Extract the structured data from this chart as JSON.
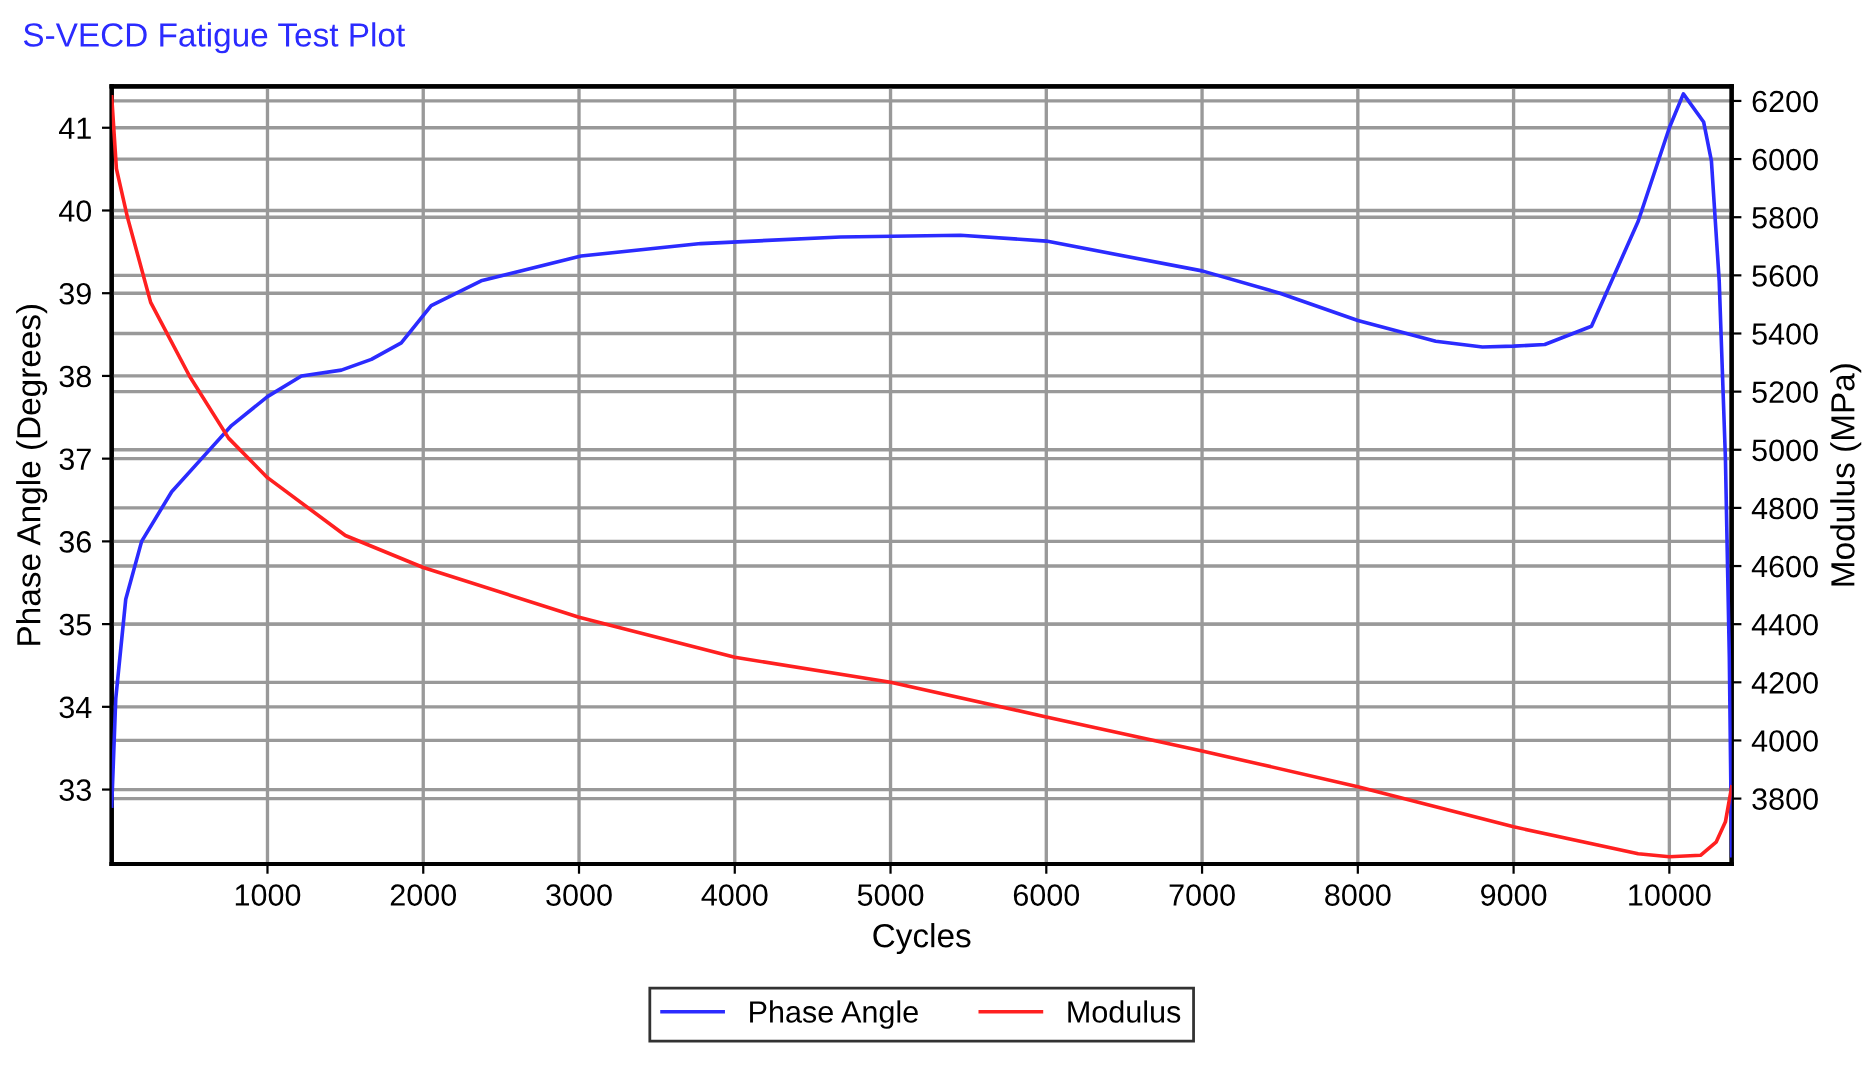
{
  "chart_data": {
    "type": "line",
    "title": "S-VECD Fatigue Test Plot",
    "xlabel": "Cycles",
    "ylabel": "Phase Angle (Degrees)",
    "y2label": "Modulus (MPa)",
    "xlim": [
      0,
      10400
    ],
    "xticks": [
      1000,
      2000,
      3000,
      4000,
      5000,
      6000,
      7000,
      8000,
      9000,
      10000
    ],
    "ylim": [
      32.1,
      41.5
    ],
    "yticks": [
      33,
      34,
      35,
      36,
      37,
      38,
      39,
      40,
      41
    ],
    "y2lim": [
      3575,
      6250
    ],
    "y2ticks": [
      3800,
      4000,
      4200,
      4400,
      4600,
      4800,
      5000,
      5200,
      5400,
      5600,
      5800,
      6000,
      6200
    ],
    "grid": true,
    "legend": "bottom",
    "marker": "none",
    "line_style": "solid",
    "series": [
      {
        "name": "Phase Angle",
        "color": "#2b2bff",
        "x": [
          0,
          26,
          90,
          192,
          385,
          577,
          769,
          1000,
          1218,
          1474,
          1667,
          1859,
          2051,
          2372,
          3013,
          3782,
          4679,
          5449,
          6000,
          7000,
          7500,
          8000,
          8500,
          8800,
          9000,
          9200,
          9500,
          9800,
          10000,
          10090,
          10220,
          10270,
          10320,
          10360,
          10385,
          10400
        ],
        "values": [
          32.8,
          34.1,
          35.3,
          36.0,
          36.6,
          37.0,
          37.4,
          37.75,
          38.0,
          38.07,
          38.2,
          38.4,
          38.85,
          39.15,
          39.45,
          39.6,
          39.68,
          39.7,
          39.63,
          39.27,
          39.0,
          38.67,
          38.42,
          38.35,
          38.36,
          38.38,
          38.6,
          39.87,
          41.0,
          41.41,
          41.07,
          40.6,
          39.15,
          37.0,
          34.6,
          32.2
        ]
      },
      {
        "name": "Modulus",
        "color": "#ff2020",
        "axis": "y2",
        "x": [
          0,
          30,
          100,
          250,
          500,
          750,
          1000,
          1500,
          2000,
          3000,
          4000,
          5000,
          6000,
          7000,
          8000,
          9000,
          9800,
          10000,
          10200,
          10300,
          10360,
          10400
        ],
        "values": [
          6214,
          5967,
          5802,
          5507,
          5253,
          5040,
          4904,
          4705,
          4595,
          4424,
          4286,
          4200,
          4081,
          3964,
          3841,
          3703,
          3610,
          3600,
          3605,
          3650,
          3720,
          3840
        ]
      }
    ]
  }
}
